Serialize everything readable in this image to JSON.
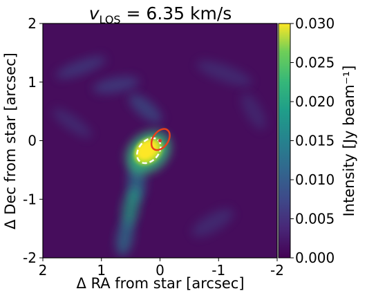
{
  "chart_data": {
    "type": "heatmap",
    "title": {
      "prefix": "v",
      "subscript": "LOS",
      "value": " = 6.35 km/s"
    },
    "xlabel": "Δ RA from star [arcsec]",
    "ylabel": "Δ Dec from star [arcsec]",
    "xlim": [
      2,
      -2
    ],
    "ylim": [
      -2,
      2
    ],
    "xticks": [
      {
        "value": 2,
        "label": "2"
      },
      {
        "value": 1,
        "label": "1"
      },
      {
        "value": 0,
        "label": "0"
      },
      {
        "value": -1,
        "label": "-1"
      },
      {
        "value": -2,
        "label": "-2"
      }
    ],
    "yticks": [
      {
        "value": 2,
        "label": "2"
      },
      {
        "value": 1,
        "label": "1"
      },
      {
        "value": 0,
        "label": "0"
      },
      {
        "value": -1,
        "label": "-1"
      },
      {
        "value": -2,
        "label": "-2"
      }
    ],
    "colorbar": {
      "label": "Intensity [Jy beam⁻¹]",
      "colormap": "viridis",
      "range": [
        0.0,
        0.03
      ],
      "ticks": [
        {
          "value": 0.0,
          "label": "0.000"
        },
        {
          "value": 0.005,
          "label": "0.005"
        },
        {
          "value": 0.01,
          "label": "0.010"
        },
        {
          "value": 0.015,
          "label": "0.015"
        },
        {
          "value": 0.02,
          "label": "0.020"
        },
        {
          "value": 0.025,
          "label": "0.025"
        },
        {
          "value": 0.03,
          "label": "0.030"
        }
      ]
    },
    "emission_features": [
      {
        "name": "central-peak",
        "x": 0.2,
        "y": -0.2,
        "intensity": 0.03
      },
      {
        "name": "southern-streamer",
        "x": 0.45,
        "y": -1.1,
        "intensity": 0.015
      },
      {
        "name": "northern-arc",
        "x": 0.9,
        "y": 0.75,
        "intensity": 0.006
      }
    ],
    "contours": [
      {
        "name": "white-dashed-ellipse",
        "color": "#ffffff",
        "style": "dashed",
        "center": [
          0.19,
          -0.17
        ],
        "semi_axes": [
          0.24,
          0.17
        ],
        "angle_deg": 50
      },
      {
        "name": "red-solid-ellipse",
        "color": "#e8401c",
        "style": "solid",
        "center": [
          -0.01,
          0.02
        ],
        "semi_axes": [
          0.2,
          0.13
        ],
        "angle_deg": 55
      }
    ],
    "star_marker": {
      "x": 0.0,
      "y": 0.0,
      "color": "#d33b2b"
    }
  }
}
